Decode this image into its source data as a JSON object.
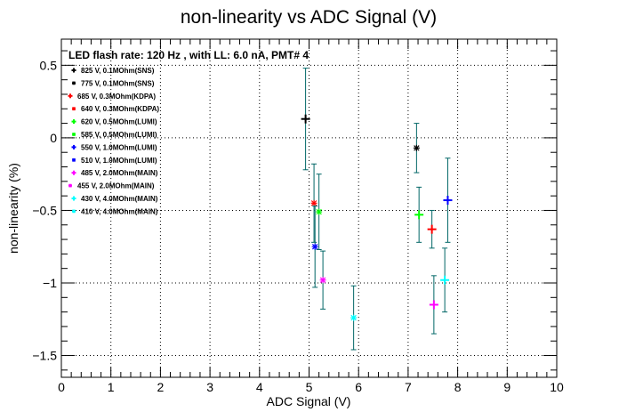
{
  "chart_data": {
    "type": "scatter",
    "title": "non-linearity vs ADC Signal (V)",
    "xlabel": "ADC Signal (V)",
    "ylabel": "non-linearity (%)",
    "xlim": [
      0,
      10
    ],
    "ylim": [
      -1.65,
      0.68
    ],
    "xticks": [
      0,
      1,
      2,
      3,
      4,
      5,
      6,
      7,
      8,
      9,
      10
    ],
    "yticks": [
      0.5,
      0,
      -0.5,
      -1,
      -1.5
    ],
    "ytick_labels": [
      "0.5",
      "0",
      "−0.5",
      "−1",
      "−1.5"
    ],
    "grid": true,
    "legend_position": "top-left",
    "legend_header": "LED flash rate: 120 Hz , with LL: 6.0 nA, PMT# 4",
    "series": [
      {
        "name": "825 V, 0.1MOhm(SNS)",
        "color": "#000000",
        "marker": "+",
        "points": [
          {
            "x": 4.93,
            "y": 0.13,
            "err": 0.35
          }
        ]
      },
      {
        "name": "775 V, 0.1MOhm(SNS)",
        "color": "#000000",
        "marker": "*",
        "points": [
          {
            "x": 7.17,
            "y": -0.07,
            "err": 0.17
          }
        ]
      },
      {
        "name": "685 V, 0.3MOhm(KDPA)",
        "color": "#ff0000",
        "marker": "+",
        "points": [
          {
            "x": 7.48,
            "y": -0.63,
            "err": 0.13
          }
        ]
      },
      {
        "name": "640 V, 0.3MOhm(KDPA)",
        "color": "#ff0000",
        "marker": "*",
        "points": [
          {
            "x": 5.1,
            "y": -0.45,
            "err": 0.27
          }
        ]
      },
      {
        "name": "620 V, 0.5MOhm(LUMI)",
        "color": "#00ff00",
        "marker": "+",
        "points": [
          {
            "x": 7.22,
            "y": -0.53,
            "err": 0.19
          }
        ]
      },
      {
        "name": "585 V, 0.5MOhm(LUMI)",
        "color": "#00ff00",
        "marker": "*",
        "points": [
          {
            "x": 5.2,
            "y": -0.51,
            "err": 0.26
          }
        ]
      },
      {
        "name": "550 V, 1.0MOhm(LUMI)",
        "color": "#0000ff",
        "marker": "+",
        "points": [
          {
            "x": 7.8,
            "y": -0.43,
            "err": 0.29
          }
        ]
      },
      {
        "name": "510 V, 1.0MOhm(LUMI)",
        "color": "#0000ff",
        "marker": "*",
        "points": [
          {
            "x": 5.12,
            "y": -0.75,
            "err": 0.28
          }
        ]
      },
      {
        "name": "485 V, 2.0MOhm(MAIN)",
        "color": "#ff00ff",
        "marker": "+",
        "points": [
          {
            "x": 7.52,
            "y": -1.15,
            "err": 0.2
          }
        ]
      },
      {
        "name": "455 V, 2.0MOhm(MAIN)",
        "color": "#ff00ff",
        "marker": "*",
        "points": [
          {
            "x": 5.28,
            "y": -0.98,
            "err": 0.2
          }
        ]
      },
      {
        "name": "430 V, 4.0MOhm(MAIN)",
        "color": "#00ffff",
        "marker": "+",
        "points": [
          {
            "x": 7.74,
            "y": -0.98,
            "err": 0.22
          }
        ]
      },
      {
        "name": "410 V, 4.0MOhm(MAIN)",
        "color": "#00ffff",
        "marker": "*",
        "points": [
          {
            "x": 5.9,
            "y": -1.24,
            "err": 0.22
          }
        ]
      }
    ],
    "error_bar_color": "#006666"
  }
}
